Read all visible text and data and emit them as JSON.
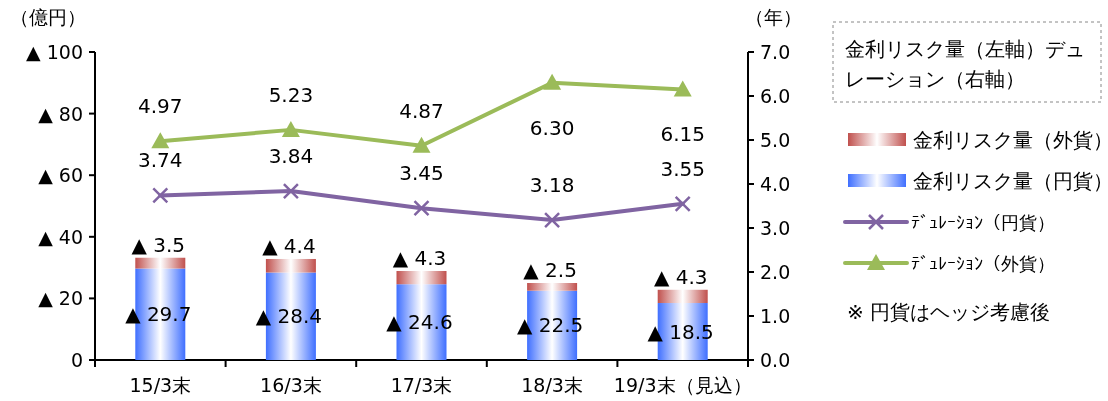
{
  "chart_data": {
    "type": "bar",
    "stacked": true,
    "ylabel": "（億円）",
    "y2label": "（年）",
    "legend_title": "金利リスク量（左軸）デュレーション（右軸）",
    "legend": "right",
    "annotations": [
      "※ 円貨はヘッジ考慮後"
    ],
    "categories": [
      "15/3末",
      "16/3末",
      "17/3末",
      "18/3末",
      "19/3末（見込）"
    ],
    "ylim": [
      0,
      100
    ],
    "yticks": [
      0,
      {
        "value": 20,
        "label": "▲ 20"
      },
      {
        "value": 40,
        "label": "▲ 40"
      },
      {
        "value": 60,
        "label": "▲ 60"
      },
      {
        "value": 80,
        "label": "▲ 80"
      },
      {
        "value": 100,
        "label": "▲ 100"
      }
    ],
    "y2lim": [
      0,
      7
    ],
    "y2ticks": [
      {
        "value": 0,
        "label": "0.0"
      },
      {
        "value": 1,
        "label": "1.0"
      },
      {
        "value": 2,
        "label": "2.0"
      },
      {
        "value": 3,
        "label": "3.0"
      },
      {
        "value": 4,
        "label": "4.0"
      },
      {
        "value": 5,
        "label": "5.0"
      },
      {
        "value": 6,
        "label": "6.0"
      },
      {
        "value": 7,
        "label": "7.0"
      }
    ],
    "series": [
      {
        "name": "金利リスク量（円貨）",
        "color": "#3f6fff",
        "values": [
          29.7,
          28.4,
          24.6,
          22.5,
          18.5
        ],
        "value_labels": [
          "▲ 29.7",
          "▲ 28.4",
          "▲ 24.6",
          "▲ 22.5",
          "▲ 18.5"
        ]
      },
      {
        "name": "金利リスク量（外貨）",
        "color": "#c0504d",
        "values": [
          3.5,
          4.4,
          4.3,
          2.5,
          4.3
        ],
        "value_labels": [
          "▲ 3.5",
          "▲ 4.4",
          "▲ 4.3",
          "▲ 2.5",
          "▲ 4.3"
        ]
      },
      {
        "name": "ﾃﾞｭﾚｰｼｮﾝ（円貨）",
        "type": "line",
        "axis": "y2",
        "marker": "cross",
        "color": "#8064a2",
        "values": [
          3.74,
          3.84,
          3.45,
          3.18,
          3.55
        ],
        "value_labels": [
          "3.74",
          "3.84",
          "3.45",
          "3.18",
          "3.55"
        ]
      },
      {
        "name": "ﾃﾞｭﾚｰｼｮﾝ（外貨）",
        "type": "line",
        "axis": "y2",
        "marker": "triangle",
        "color": "#9bbb59",
        "values": [
          4.97,
          5.23,
          4.87,
          6.3,
          6.15
        ],
        "value_labels": [
          "4.97",
          "5.23",
          "4.87",
          "6.30",
          "6.15"
        ]
      }
    ]
  }
}
